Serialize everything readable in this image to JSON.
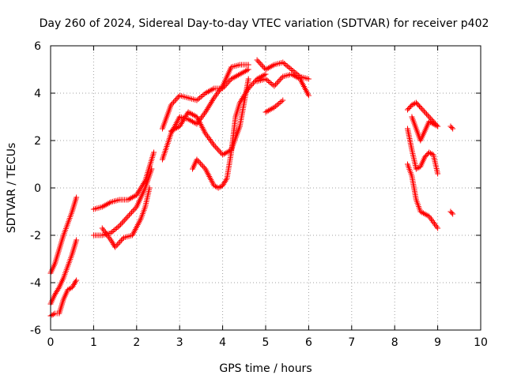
{
  "chart_data": {
    "type": "scatter",
    "title": "Day 260 of 2024, Sidereal Day-to-day VTEC variation (SDTVAR) for receiver p402",
    "xlabel": "GPS time / hours",
    "ylabel": "SDTVAR / TECUs",
    "xlim": [
      0,
      10
    ],
    "ylim": [
      -6,
      6
    ],
    "x_ticks": [
      "0",
      "1",
      "2",
      "3",
      "4",
      "5",
      "6",
      "7",
      "8",
      "9",
      "10"
    ],
    "y_ticks": [
      "-6",
      "-4",
      "-2",
      "0",
      "2",
      "4",
      "6"
    ],
    "grid": true,
    "marker": "+",
    "series_color": "#ff0000",
    "series": [
      {
        "x": [
          0.0,
          0.1,
          0.2,
          0.3,
          0.4,
          0.5,
          0.6
        ],
        "y": [
          -3.6,
          -3.2,
          -2.6,
          -2.0,
          -1.5,
          -1.0,
          -0.4
        ]
      },
      {
        "x": [
          0.0,
          0.1,
          0.2,
          0.3,
          0.4,
          0.5,
          0.6
        ],
        "y": [
          -4.9,
          -4.5,
          -4.2,
          -3.8,
          -3.3,
          -2.8,
          -2.2
        ]
      },
      {
        "x": [
          0.0,
          0.1,
          0.2,
          0.3,
          0.4,
          0.5,
          0.6
        ],
        "y": [
          -5.4,
          -5.3,
          -5.3,
          -4.7,
          -4.3,
          -4.2,
          -3.9
        ]
      },
      {
        "x": [
          1.0,
          1.2,
          1.4,
          1.6,
          1.8,
          2.0,
          2.2,
          2.4
        ],
        "y": [
          -0.9,
          -0.8,
          -0.6,
          -0.5,
          -0.5,
          -0.3,
          0.3,
          1.5
        ]
      },
      {
        "x": [
          1.0,
          1.2,
          1.4,
          1.6,
          1.8,
          2.0,
          2.2,
          2.35
        ],
        "y": [
          -2.0,
          -2.0,
          -1.9,
          -1.6,
          -1.2,
          -0.8,
          0.0,
          0.8
        ]
      },
      {
        "x": [
          1.2,
          1.4,
          1.5,
          1.7,
          1.9,
          2.1,
          2.2,
          2.3
        ],
        "y": [
          -1.7,
          -2.2,
          -2.5,
          -2.1,
          -2.0,
          -1.3,
          -0.8,
          0.0
        ]
      },
      {
        "x": [
          2.6,
          2.8,
          3.0,
          3.2,
          3.4,
          3.6,
          3.8,
          4.0,
          4.2,
          4.4,
          4.6
        ],
        "y": [
          2.5,
          3.5,
          3.9,
          3.8,
          3.7,
          4.0,
          4.2,
          4.2,
          4.6,
          4.8,
          5.0
        ]
      },
      {
        "x": [
          2.6,
          2.8,
          3.0,
          3.2,
          3.4,
          3.6,
          3.8,
          4.0,
          4.2,
          4.4,
          4.6
        ],
        "y": [
          1.2,
          2.3,
          3.0,
          2.9,
          2.7,
          3.2,
          3.8,
          4.3,
          5.1,
          5.2,
          5.2
        ]
      },
      {
        "x": [
          2.8,
          3.0,
          3.2,
          3.4,
          3.6,
          3.8,
          4.0,
          4.2,
          4.4,
          4.6
        ],
        "y": [
          2.4,
          2.6,
          3.2,
          3.0,
          2.3,
          1.8,
          1.4,
          1.6,
          2.6,
          4.6
        ]
      },
      {
        "x": [
          3.3,
          3.4,
          3.6,
          3.8,
          3.9,
          4.0,
          4.1,
          4.2,
          4.3,
          4.4,
          4.6,
          4.8,
          5.0
        ],
        "y": [
          0.8,
          1.2,
          0.8,
          0.1,
          0.0,
          0.1,
          0.4,
          1.5,
          3.0,
          3.6,
          4.2,
          4.6,
          4.8
        ]
      },
      {
        "x": [
          4.8,
          5.0,
          5.2,
          5.4,
          5.6,
          5.8,
          6.0
        ],
        "y": [
          5.4,
          5.0,
          5.2,
          5.3,
          5.0,
          4.7,
          4.6
        ]
      },
      {
        "x": [
          4.8,
          5.0,
          5.2,
          5.4,
          5.6,
          5.8,
          6.0
        ],
        "y": [
          4.5,
          4.6,
          4.3,
          4.7,
          4.8,
          4.6,
          3.9
        ]
      },
      {
        "x": [
          5.0,
          5.2,
          5.4
        ],
        "y": [
          3.2,
          3.4,
          3.7
        ]
      },
      {
        "x": [
          8.3,
          8.4,
          8.5,
          8.6,
          8.8,
          9.0
        ],
        "y": [
          3.3,
          3.5,
          3.6,
          3.4,
          3.0,
          2.6
        ]
      },
      {
        "x": [
          8.3,
          8.4,
          8.5,
          8.6,
          8.7,
          8.8,
          8.9,
          9.0
        ],
        "y": [
          2.5,
          1.6,
          0.8,
          0.9,
          1.3,
          1.5,
          1.4,
          0.6
        ]
      },
      {
        "x": [
          8.3,
          8.4,
          8.5,
          8.6,
          8.8,
          9.0
        ],
        "y": [
          1.0,
          0.5,
          -0.5,
          -1.0,
          -1.2,
          -1.7
        ]
      },
      {
        "x": [
          8.4,
          8.6,
          8.8,
          9.0
        ],
        "y": [
          3.0,
          2.0,
          2.8,
          2.6
        ]
      },
      {
        "x": [
          9.3,
          9.35
        ],
        "y": [
          2.6,
          2.5
        ]
      },
      {
        "x": [
          9.3,
          9.35
        ],
        "y": [
          -1.0,
          -1.1
        ]
      }
    ]
  }
}
